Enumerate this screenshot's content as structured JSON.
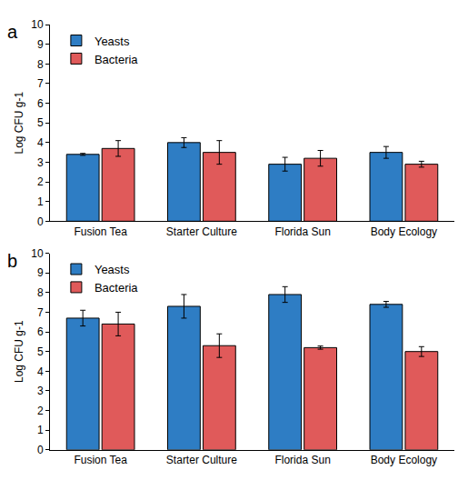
{
  "chart_data": [
    {
      "type": "bar",
      "title": "a",
      "categories": [
        "Fusion Tea",
        "Starter Culture",
        "Florida Sun",
        "Body Ecology"
      ],
      "y_label": "Log CFU g-1",
      "series": [
        {
          "name": "Yeasts",
          "color": "#2e7dc4",
          "values": [
            3.4,
            4.0,
            2.9,
            3.5
          ],
          "errors": [
            0.05,
            0.25,
            0.35,
            0.3
          ]
        },
        {
          "name": "Bacteria",
          "color": "#e05a5a",
          "values": [
            3.7,
            3.5,
            3.2,
            2.9
          ],
          "errors": [
            0.4,
            0.6,
            0.4,
            0.15
          ]
        }
      ],
      "ylim": [
        0,
        10
      ],
      "yticks": [
        0,
        1,
        2,
        3,
        4,
        5,
        6,
        7,
        8,
        9,
        10
      ],
      "grid": false,
      "legend": "top left"
    },
    {
      "type": "bar",
      "title": "b",
      "categories": [
        "Fusion Tea",
        "Starter Culture",
        "Florida Sun",
        "Body Ecology"
      ],
      "y_label": "Log CFU g-1",
      "series": [
        {
          "name": "Yeasts",
          "color": "#2e7dc4",
          "values": [
            6.7,
            7.3,
            7.9,
            7.4
          ],
          "errors": [
            0.4,
            0.6,
            0.4,
            0.15
          ]
        },
        {
          "name": "Bacteria",
          "color": "#e05a5a",
          "values": [
            6.4,
            5.3,
            5.2,
            5.0
          ],
          "errors": [
            0.6,
            0.6,
            0.08,
            0.25
          ]
        }
      ],
      "ylim": [
        0,
        10
      ],
      "yticks": [
        0,
        1,
        2,
        3,
        4,
        5,
        6,
        7,
        8,
        9,
        10
      ],
      "grid": false,
      "legend": "top left"
    }
  ]
}
